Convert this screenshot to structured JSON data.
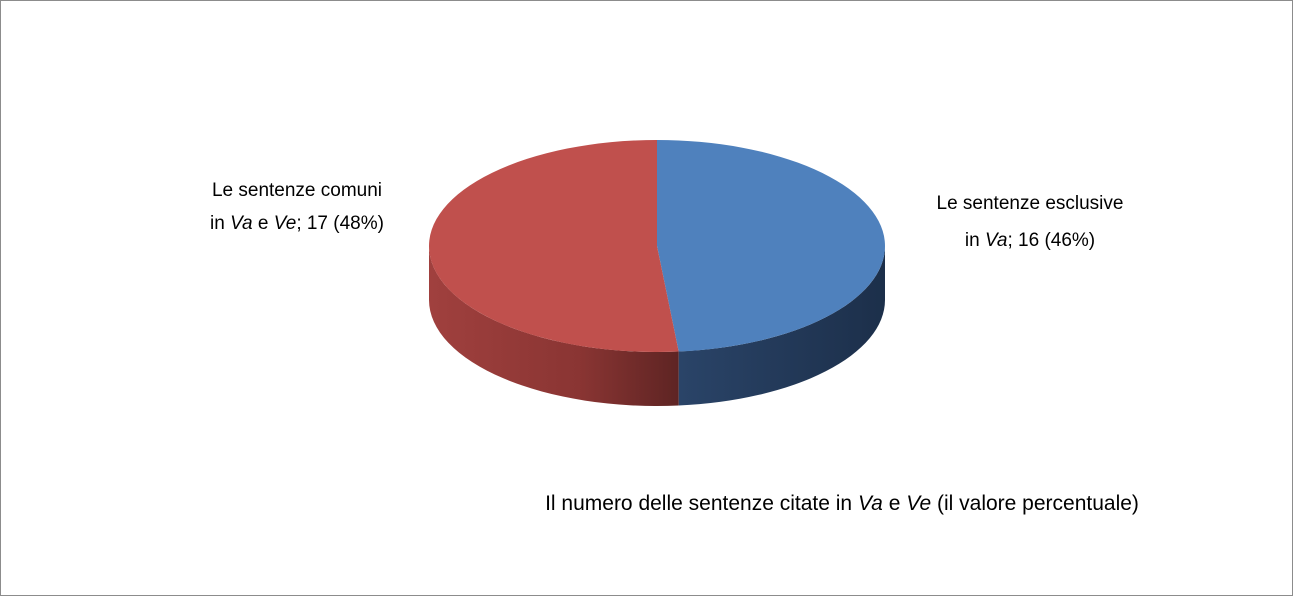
{
  "chart_data": {
    "type": "pie3d",
    "title": [
      {
        "t": "Il numero delle sentenze citate in "
      },
      {
        "t": "Va",
        "italic": true
      },
      {
        "t": " e "
      },
      {
        "t": "Ve",
        "italic": true
      },
      {
        "t": " (il valore percentuale)"
      }
    ],
    "values": [
      16,
      17
    ],
    "colors": [
      "#4f81bd",
      "#c0504d"
    ],
    "value_labels": [
      [
        [
          {
            "t": "Le sentenze esclusive"
          }
        ],
        [
          {
            "t": "in "
          },
          {
            "t": "Va",
            "italic": true
          },
          {
            "t": "; 16 (46%)"
          }
        ]
      ],
      [
        [
          {
            "t": "Le sentenze comuni"
          }
        ],
        [
          {
            "t": "in "
          },
          {
            "t": "Va",
            "italic": true
          },
          {
            "t": " e "
          },
          {
            "t": "Ve",
            "italic": true
          },
          {
            "t": "; 17 (48%)"
          }
        ]
      ]
    ]
  }
}
